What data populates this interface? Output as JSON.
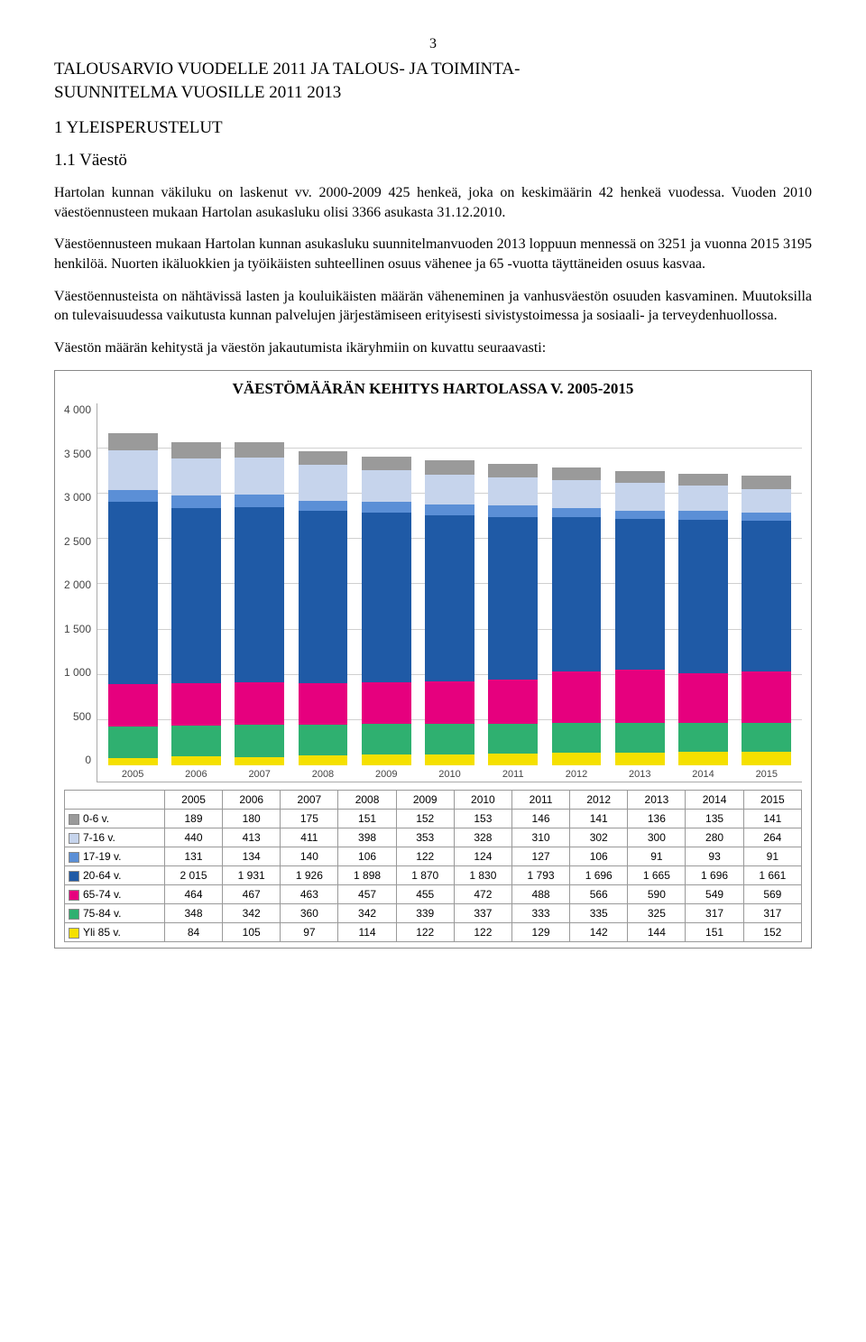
{
  "page_number": "3",
  "doc_title_line1": "TALOUSARVIO VUODELLE 2011 JA TALOUS- JA TOIMINTA-",
  "doc_title_line2": "SUUNNITELMA VUOSILLE 2011 2013",
  "section1": "1 YLEISPERUSTELUT",
  "subsection11": "1.1 Väestö",
  "para1": "Hartolan kunnan väkiluku on laskenut vv. 2000-2009 425 henkeä, joka on keskimäärin 42 henkeä vuodessa. Vuoden 2010 väestöennusteen mukaan Hartolan asukasluku olisi 3366 asukasta 31.12.2010.",
  "para2": "Väestöennusteen mukaan Hartolan kunnan asukasluku suunnitelmanvuoden 2013 loppuun mennessä on 3251 ja vuonna 2015 3195 henkilöä. Nuorten ikäluokkien ja työikäisten suhteellinen osuus vähenee ja 65 -vuotta täyttäneiden osuus kasvaa.",
  "para3": "Väestöennusteista on nähtävissä lasten ja kouluikäisten määrän väheneminen ja vanhusväestön osuuden kasvaminen. Muutoksilla on tulevaisuudessa vaikutusta kunnan palvelujen järjestämiseen erityisesti sivistystoimessa ja sosiaali- ja terveydenhuollossa.",
  "para4": "Väestön määrän kehitystä ja väestön jakautumista ikäryhmiin on kuvattu seuraavasti:",
  "chart": {
    "type": "stacked-bar",
    "title": "VÄESTÖMÄÄRÄN KEHITYS HARTOLASSA V. 2005-2015",
    "years": [
      "2005",
      "2006",
      "2007",
      "2008",
      "2009",
      "2010",
      "2011",
      "2012",
      "2013",
      "2014",
      "2015"
    ],
    "ymax": 4000,
    "ytick_step": 500,
    "yticks": [
      "4 000",
      "3 500",
      "3 000",
      "2 500",
      "2 000",
      "1 500",
      "1 000",
      "500",
      "0"
    ],
    "grid_color": "#d0d0d0",
    "background_color": "#ffffff",
    "title_fontsize": 17,
    "label_fontsize": 12,
    "series": [
      {
        "name": "Yli 85 v.",
        "color": "#f5e000",
        "values": [
          84,
          105,
          97,
          114,
          122,
          122,
          129,
          142,
          144,
          151,
          152
        ]
      },
      {
        "name": "75-84 v.",
        "color": "#2fb070",
        "values": [
          348,
          342,
          360,
          342,
          339,
          337,
          333,
          335,
          325,
          317,
          317
        ]
      },
      {
        "name": "65-74 v.",
        "color": "#e6007e",
        "values": [
          464,
          467,
          463,
          457,
          455,
          472,
          488,
          566,
          590,
          549,
          569
        ]
      },
      {
        "name": "20-64 v.",
        "color": "#1f5aa6",
        "values": [
          2015,
          1931,
          1926,
          1898,
          1870,
          1830,
          1793,
          1696,
          1665,
          1696,
          1661
        ]
      },
      {
        "name": "17-19 v.",
        "color": "#5b8fd6",
        "values": [
          131,
          134,
          140,
          106,
          122,
          124,
          127,
          106,
          91,
          93,
          91
        ]
      },
      {
        "name": "7-16 v.",
        "color": "#c6d4ec",
        "values": [
          440,
          413,
          411,
          398,
          353,
          328,
          310,
          302,
          300,
          280,
          264
        ]
      },
      {
        "name": "0-6 v.",
        "color": "#9a9a9a",
        "values": [
          189,
          180,
          175,
          151,
          152,
          153,
          146,
          141,
          136,
          135,
          141
        ]
      }
    ],
    "table_order": [
      "0-6 v.",
      "7-16 v.",
      "17-19 v.",
      "20-64 v.",
      "65-74 v.",
      "75-84 v.",
      "Yli 85 v."
    ],
    "table_colors": {
      "0-6 v.": "#9a9a9a",
      "7-16 v.": "#c6d4ec",
      "17-19 v.": "#5b8fd6",
      "20-64 v.": "#1f5aa6",
      "65-74 v.": "#e6007e",
      "75-84 v.": "#2fb070",
      "Yli 85 v.": "#f5e000"
    },
    "table_values": {
      "0-6 v.": [
        "189",
        "180",
        "175",
        "151",
        "152",
        "153",
        "146",
        "141",
        "136",
        "135",
        "141"
      ],
      "7-16 v.": [
        "440",
        "413",
        "411",
        "398",
        "353",
        "328",
        "310",
        "302",
        "300",
        "280",
        "264"
      ],
      "17-19 v.": [
        "131",
        "134",
        "140",
        "106",
        "122",
        "124",
        "127",
        "106",
        "91",
        "93",
        "91"
      ],
      "20-64 v.": [
        "2 015",
        "1 931",
        "1 926",
        "1 898",
        "1 870",
        "1 830",
        "1 793",
        "1 696",
        "1 665",
        "1 696",
        "1 661"
      ],
      "65-74 v.": [
        "464",
        "467",
        "463",
        "457",
        "455",
        "472",
        "488",
        "566",
        "590",
        "549",
        "569"
      ],
      "75-84 v.": [
        "348",
        "342",
        "360",
        "342",
        "339",
        "337",
        "333",
        "335",
        "325",
        "317",
        "317"
      ],
      "Yli 85 v.": [
        "84",
        "105",
        "97",
        "114",
        "122",
        "122",
        "129",
        "142",
        "144",
        "151",
        "152"
      ]
    }
  }
}
